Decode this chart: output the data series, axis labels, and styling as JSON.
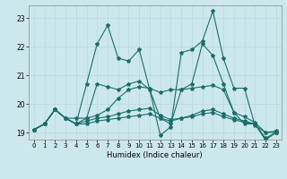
{
  "background_color": "#cde8ec",
  "grid_color": "#b8d8dc",
  "line_color": "#1a6e68",
  "xlabel": "Humidex (Indice chaleur)",
  "ylim": [
    18.75,
    23.45
  ],
  "xlim": [
    -0.5,
    23.5
  ],
  "yticks": [
    19,
    20,
    21,
    22,
    23
  ],
  "xticks": [
    0,
    1,
    2,
    3,
    4,
    5,
    6,
    7,
    8,
    9,
    10,
    11,
    12,
    13,
    14,
    15,
    16,
    17,
    18,
    19,
    20,
    21,
    22,
    23
  ],
  "series": [
    [
      19.1,
      19.3,
      19.8,
      19.5,
      19.3,
      20.7,
      22.1,
      22.75,
      21.6,
      21.5,
      21.9,
      20.5,
      18.9,
      19.2,
      21.8,
      21.9,
      22.2,
      23.25,
      21.6,
      20.55,
      20.55,
      19.25,
      19.0,
      19.0
    ],
    [
      19.1,
      19.3,
      19.8,
      19.5,
      19.3,
      19.5,
      20.7,
      20.6,
      20.5,
      20.7,
      20.8,
      20.5,
      19.5,
      19.3,
      20.5,
      20.7,
      22.1,
      21.7,
      20.7,
      19.7,
      19.3,
      19.3,
      18.8,
      19.0
    ],
    [
      19.1,
      19.3,
      19.8,
      19.5,
      19.5,
      19.5,
      19.6,
      19.8,
      20.2,
      20.5,
      20.6,
      20.55,
      20.4,
      20.5,
      20.5,
      20.55,
      20.6,
      20.65,
      20.5,
      19.7,
      19.55,
      19.35,
      19.0,
      19.05
    ],
    [
      19.1,
      19.3,
      19.8,
      19.5,
      19.3,
      19.3,
      19.4,
      19.45,
      19.5,
      19.55,
      19.6,
      19.65,
      19.5,
      19.4,
      19.5,
      19.55,
      19.65,
      19.7,
      19.55,
      19.45,
      19.35,
      19.3,
      18.75,
      19.0
    ],
    [
      19.1,
      19.3,
      19.8,
      19.5,
      19.3,
      19.4,
      19.5,
      19.55,
      19.65,
      19.75,
      19.8,
      19.85,
      19.6,
      19.45,
      19.5,
      19.6,
      19.75,
      19.8,
      19.65,
      19.5,
      19.4,
      19.3,
      18.75,
      19.0
    ]
  ]
}
